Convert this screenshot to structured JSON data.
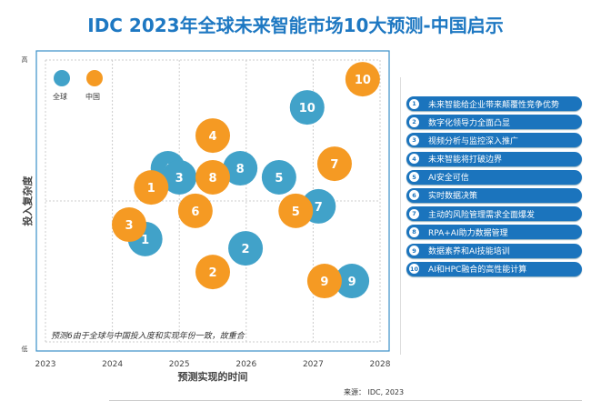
{
  "chart_data": {
    "type": "scatter",
    "title": "IDC 2023年全球未来智能市场10大预测-中国启示",
    "xlabel": "预测实现的时间",
    "ylabel": "投入复杂度",
    "y_high_label": "高",
    "y_low_label": "低",
    "xlim": [
      2023,
      2028
    ],
    "ylim": [
      0,
      10
    ],
    "x_ticks": [
      "2023",
      "2024",
      "2025",
      "2026",
      "2027",
      "2028"
    ],
    "grid": true,
    "legend_placement": "top-left",
    "annotation": "预测6由于全球与中国投入度和实现年份一致，故重合",
    "series": [
      {
        "name": "全球",
        "color": "#41a2c9",
        "points": [
          {
            "label": "1",
            "x": 2024.49,
            "y": 3.65
          },
          {
            "label": "2",
            "x": 2025.99,
            "y": 3.32
          },
          {
            "label": "4",
            "x": 2024.83,
            "y": 6.16
          },
          {
            "label": "3",
            "x": 2025.0,
            "y": 5.84
          },
          {
            "label": "5",
            "x": 2026.49,
            "y": 5.84
          },
          {
            "label": "7",
            "x": 2027.08,
            "y": 4.81
          },
          {
            "label": "8",
            "x": 2025.91,
            "y": 6.16
          },
          {
            "label": "9",
            "x": 2027.58,
            "y": 2.16
          },
          {
            "label": "10",
            "x": 2026.91,
            "y": 8.32
          }
        ]
      },
      {
        "name": "中国",
        "color": "#f59a23",
        "points": [
          {
            "label": "1",
            "x": 2024.58,
            "y": 5.48
          },
          {
            "label": "2",
            "x": 2025.5,
            "y": 2.48
          },
          {
            "label": "3",
            "x": 2024.25,
            "y": 4.16
          },
          {
            "label": "4",
            "x": 2025.5,
            "y": 7.32
          },
          {
            "label": "5",
            "x": 2026.74,
            "y": 4.65
          },
          {
            "label": "6",
            "x": 2025.24,
            "y": 4.65
          },
          {
            "label": "7",
            "x": 2027.32,
            "y": 6.32
          },
          {
            "label": "8",
            "x": 2025.5,
            "y": 5.84
          },
          {
            "label": "9",
            "x": 2027.17,
            "y": 2.16
          },
          {
            "label": "10",
            "x": 2027.74,
            "y": 9.32
          }
        ]
      }
    ]
  },
  "predictions": [
    {
      "num": "1",
      "text": "未来智能给企业带来颠覆性竞争优势"
    },
    {
      "num": "2",
      "text": "数字化领导力全面凸显"
    },
    {
      "num": "3",
      "text": "视频分析与监控深入推广"
    },
    {
      "num": "4",
      "text": "未来智能将打破边界"
    },
    {
      "num": "5",
      "text": "AI安全可信"
    },
    {
      "num": "6",
      "text": "实时数据决策"
    },
    {
      "num": "7",
      "text": "主动的风险管理需求全面爆发"
    },
    {
      "num": "8",
      "text": "RPA+AI助力数据管理"
    },
    {
      "num": "9",
      "text": "数据素养和AI技能培训"
    },
    {
      "num": "10",
      "text": "AI和HPC融合的高性能计算"
    }
  ],
  "source": "来源： IDC, 2023"
}
